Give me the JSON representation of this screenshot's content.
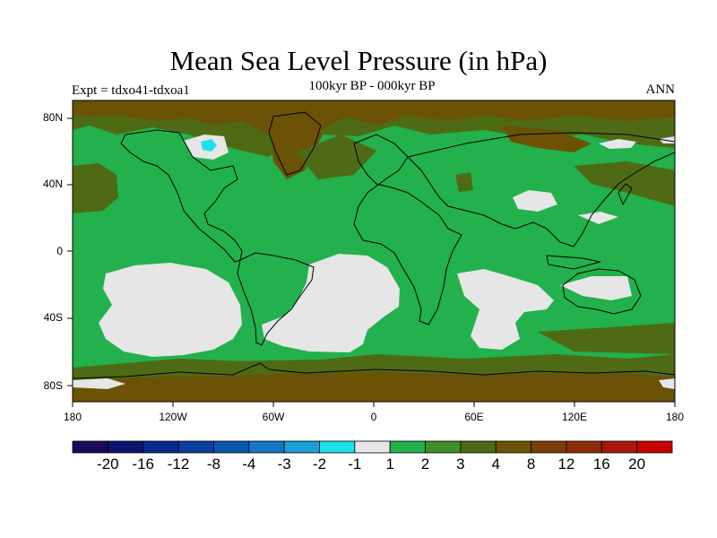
{
  "header": {
    "title": "Mean Sea Level Pressure (in hPa)",
    "subtitle": "100kyr BP - 000kyr BP",
    "left_label": "Expt = tdxo41-tdxoa1",
    "right_label": "ANN"
  },
  "axes": {
    "lat_labels": [
      "80N",
      "40N",
      "0",
      "40S",
      "80S"
    ],
    "lon_labels": [
      "180",
      "120W",
      "60W",
      "0",
      "60E",
      "120E",
      "180"
    ]
  },
  "colorbar": {
    "colors": [
      "#1a0a5c",
      "#0d1470",
      "#0c2a8a",
      "#0b3f9e",
      "#0a58b0",
      "#1476c4",
      "#1aa0d6",
      "#1ee0e8",
      "#e6e6e6",
      "#22b14c",
      "#3f8f27",
      "#4e6a14",
      "#6b5206",
      "#7a3e08",
      "#8c2b06",
      "#a8170a",
      "#c80000"
    ],
    "labels": [
      "-20",
      "-16",
      "-12",
      "-8",
      "-4",
      "-3",
      "-2",
      "-1",
      "1",
      "2",
      "3",
      "4",
      "8",
      "12",
      "16",
      "20"
    ]
  },
  "fill_colors": {
    "green": "#22b14c",
    "olive": "#4e6a14",
    "brown": "#6b5206",
    "grey": "#e6e6e6",
    "cyan": "#1ee0e8"
  }
}
